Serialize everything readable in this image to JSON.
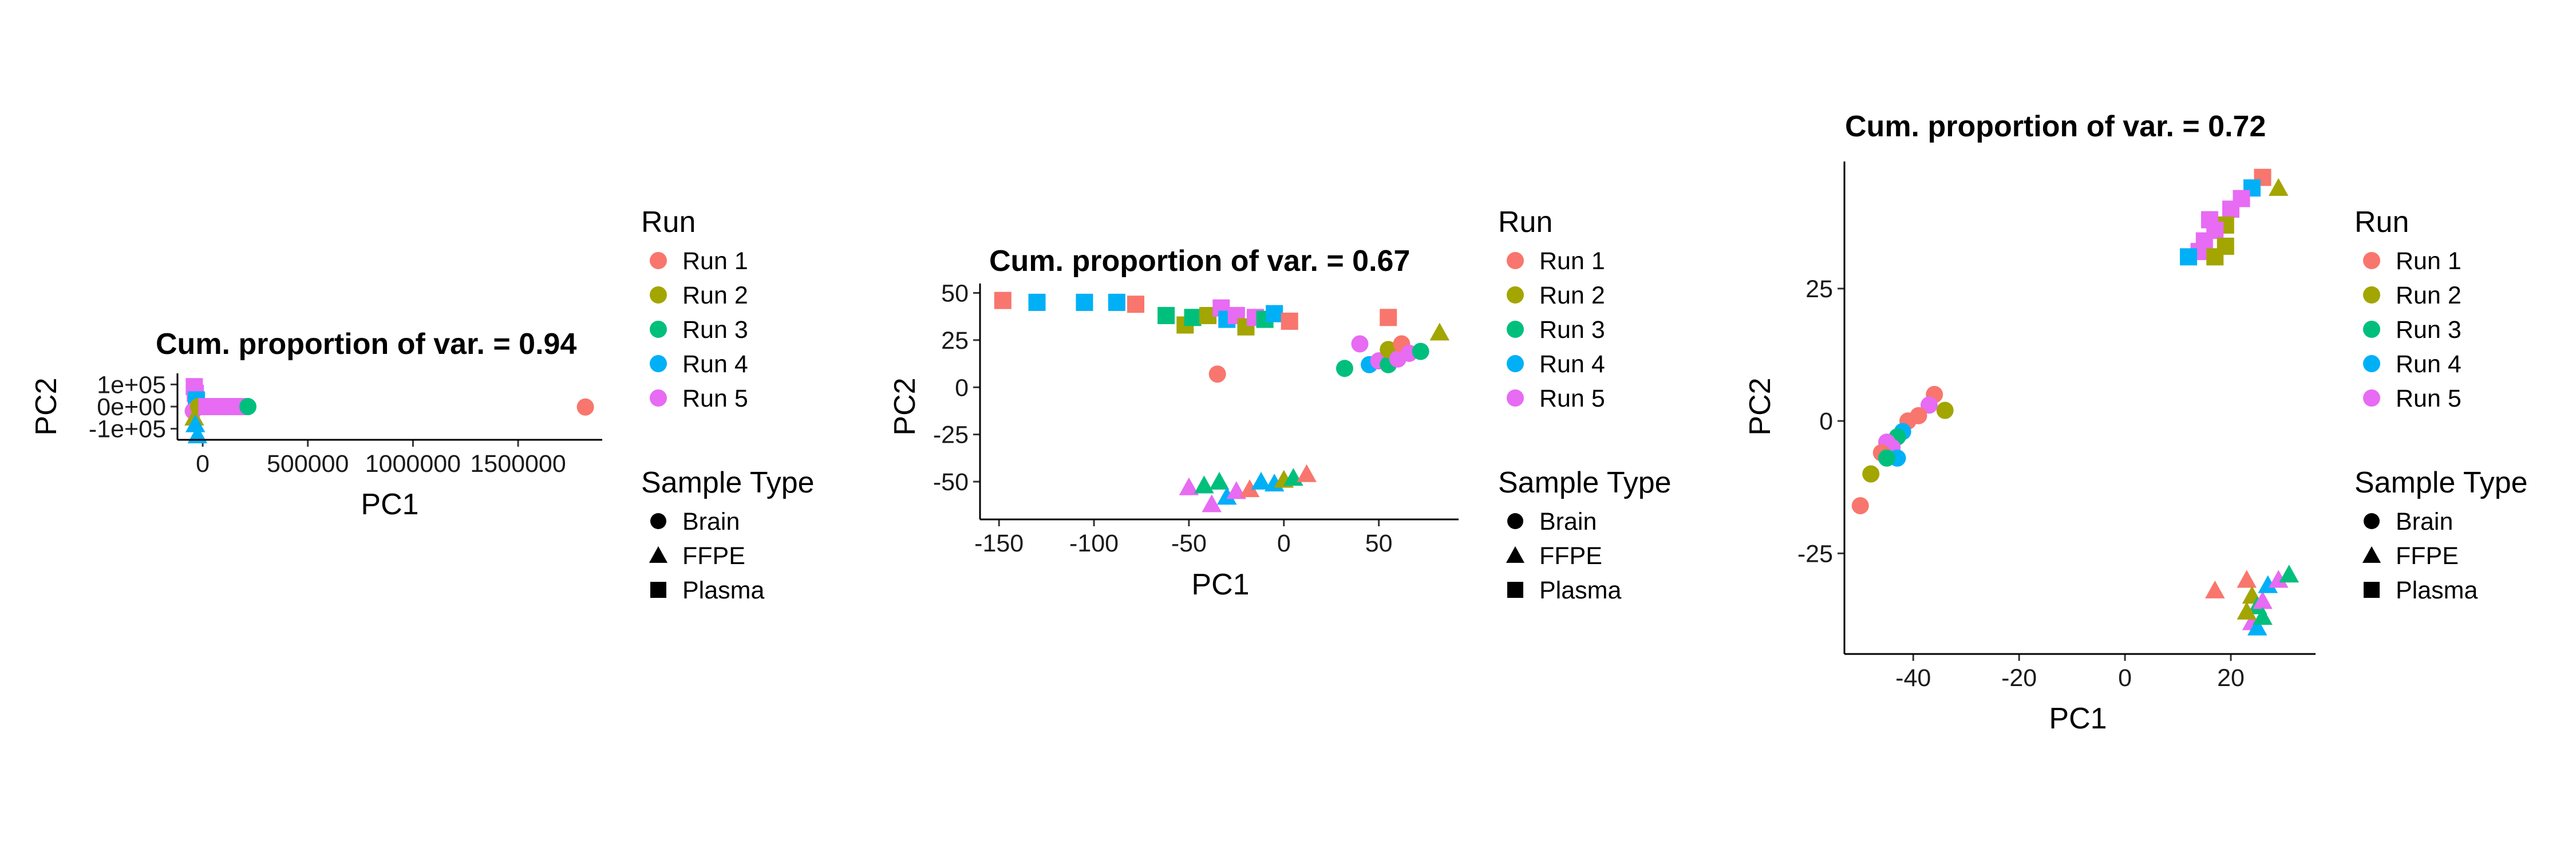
{
  "legend": {
    "run_title": "Run",
    "runs": [
      "Run 1",
      "Run 2",
      "Run 3",
      "Run 4",
      "Run 5"
    ],
    "sample_title": "Sample Type",
    "samples": [
      "Brain",
      "FFPE",
      "Plasma"
    ]
  },
  "colors": {
    "Run 1": "#F8766D",
    "Run 2": "#A3A500",
    "Run 3": "#00BF7D",
    "Run 4": "#00B0F6",
    "Run 5": "#E76BF3"
  },
  "chart_data": [
    {
      "type": "scatter",
      "title": "Cum. proportion of var. = 0.94",
      "xlabel": "PC1",
      "ylabel": "PC2",
      "xlim": [
        -120000,
        1900000
      ],
      "ylim": [
        -150000,
        150000
      ],
      "xticks": [
        0,
        500000,
        1000000,
        1500000
      ],
      "xtick_labels": [
        "0",
        "500000",
        "1000000",
        "1500000"
      ],
      "yticks": [
        -100000,
        0,
        100000
      ],
      "ytick_labels": [
        "-1e+05",
        "0e+00",
        "1e+05"
      ],
      "points": [
        {
          "x": -40000,
          "y": 90000,
          "run": "Run 5",
          "sample": "Plasma"
        },
        {
          "x": -35000,
          "y": 60000,
          "run": "Run 5",
          "sample": "Plasma"
        },
        {
          "x": -30000,
          "y": 30000,
          "run": "Run 4",
          "sample": "Plasma"
        },
        {
          "x": -45000,
          "y": -20000,
          "run": "Run 5",
          "sample": "Brain"
        },
        {
          "x": -40000,
          "y": -50000,
          "run": "Run 2",
          "sample": "FFPE"
        },
        {
          "x": -35000,
          "y": -80000,
          "run": "Run 4",
          "sample": "FFPE"
        },
        {
          "x": -25000,
          "y": -130000,
          "run": "Run 4",
          "sample": "FFPE"
        },
        {
          "x": -20000,
          "y": 0,
          "run": "Run 2",
          "sample": "Brain"
        },
        {
          "x": 20000,
          "y": 0,
          "run": "Run 5",
          "sample": "Plasma"
        },
        {
          "x": 60000,
          "y": 0,
          "run": "Run 5",
          "sample": "Plasma"
        },
        {
          "x": 100000,
          "y": 0,
          "run": "Run 5",
          "sample": "Plasma"
        },
        {
          "x": 140000,
          "y": 0,
          "run": "Run 5",
          "sample": "Plasma"
        },
        {
          "x": 180000,
          "y": 0,
          "run": "Run 5",
          "sample": "Plasma"
        },
        {
          "x": 215000,
          "y": 0,
          "run": "Run 3",
          "sample": "Brain"
        },
        {
          "x": 1820000,
          "y": -2000,
          "run": "Run 1",
          "sample": "Brain"
        }
      ]
    },
    {
      "type": "scatter",
      "title": "Cum. proportion of var. = 0.67",
      "xlabel": "PC1",
      "ylabel": "PC2",
      "xlim": [
        -160,
        92
      ],
      "ylim": [
        -70,
        55
      ],
      "xticks": [
        -150,
        -100,
        -50,
        0,
        50
      ],
      "xtick_labels": [
        "-150",
        "-100",
        "-50",
        "0",
        "50"
      ],
      "yticks": [
        -50,
        -25,
        0,
        25,
        50
      ],
      "ytick_labels": [
        "-50",
        "-25",
        "0",
        "25",
        "50"
      ],
      "points": [
        {
          "x": -148,
          "y": 46,
          "run": "Run 1",
          "sample": "Plasma"
        },
        {
          "x": -130,
          "y": 45,
          "run": "Run 4",
          "sample": "Plasma"
        },
        {
          "x": -105,
          "y": 45,
          "run": "Run 4",
          "sample": "Plasma"
        },
        {
          "x": -88,
          "y": 45,
          "run": "Run 4",
          "sample": "Plasma"
        },
        {
          "x": -78,
          "y": 44,
          "run": "Run 1",
          "sample": "Plasma"
        },
        {
          "x": -62,
          "y": 38,
          "run": "Run 3",
          "sample": "Plasma"
        },
        {
          "x": -52,
          "y": 33,
          "run": "Run 2",
          "sample": "Plasma"
        },
        {
          "x": -48,
          "y": 37,
          "run": "Run 3",
          "sample": "Plasma"
        },
        {
          "x": -40,
          "y": 38,
          "run": "Run 2",
          "sample": "Plasma"
        },
        {
          "x": -33,
          "y": 42,
          "run": "Run 5",
          "sample": "Plasma"
        },
        {
          "x": -30,
          "y": 36,
          "run": "Run 4",
          "sample": "Plasma"
        },
        {
          "x": -25,
          "y": 38,
          "run": "Run 5",
          "sample": "Plasma"
        },
        {
          "x": -20,
          "y": 32,
          "run": "Run 2",
          "sample": "Plasma"
        },
        {
          "x": -15,
          "y": 37,
          "run": "Run 5",
          "sample": "Plasma"
        },
        {
          "x": -10,
          "y": 36,
          "run": "Run 3",
          "sample": "Plasma"
        },
        {
          "x": -5,
          "y": 39,
          "run": "Run 4",
          "sample": "Plasma"
        },
        {
          "x": 3,
          "y": 35,
          "run": "Run 1",
          "sample": "Plasma"
        },
        {
          "x": 55,
          "y": 37,
          "run": "Run 1",
          "sample": "Plasma"
        },
        {
          "x": -35,
          "y": 7,
          "run": "Run 1",
          "sample": "Brain"
        },
        {
          "x": 32,
          "y": 10,
          "run": "Run 3",
          "sample": "Brain"
        },
        {
          "x": 40,
          "y": 23,
          "run": "Run 5",
          "sample": "Brain"
        },
        {
          "x": 45,
          "y": 12,
          "run": "Run 4",
          "sample": "Brain"
        },
        {
          "x": 50,
          "y": 14,
          "run": "Run 5",
          "sample": "Brain"
        },
        {
          "x": 55,
          "y": 12,
          "run": "Run 3",
          "sample": "Brain"
        },
        {
          "x": 55,
          "y": 20,
          "run": "Run 2",
          "sample": "Brain"
        },
        {
          "x": 60,
          "y": 15,
          "run": "Run 5",
          "sample": "Brain"
        },
        {
          "x": 62,
          "y": 23,
          "run": "Run 1",
          "sample": "Brain"
        },
        {
          "x": 66,
          "y": 18,
          "run": "Run 5",
          "sample": "Brain"
        },
        {
          "x": 72,
          "y": 19,
          "run": "Run 3",
          "sample": "Brain"
        },
        {
          "x": 82,
          "y": 29,
          "run": "Run 2",
          "sample": "FFPE"
        },
        {
          "x": -50,
          "y": -53,
          "run": "Run 5",
          "sample": "FFPE"
        },
        {
          "x": -42,
          "y": -52,
          "run": "Run 3",
          "sample": "FFPE"
        },
        {
          "x": -38,
          "y": -62,
          "run": "Run 5",
          "sample": "FFPE"
        },
        {
          "x": -34,
          "y": -50,
          "run": "Run 3",
          "sample": "FFPE"
        },
        {
          "x": -30,
          "y": -58,
          "run": "Run 4",
          "sample": "FFPE"
        },
        {
          "x": -25,
          "y": -55,
          "run": "Run 5",
          "sample": "FFPE"
        },
        {
          "x": -18,
          "y": -54,
          "run": "Run 1",
          "sample": "FFPE"
        },
        {
          "x": -12,
          "y": -50,
          "run": "Run 4",
          "sample": "FFPE"
        },
        {
          "x": -5,
          "y": -51,
          "run": "Run 4",
          "sample": "FFPE"
        },
        {
          "x": 0,
          "y": -49,
          "run": "Run 2",
          "sample": "FFPE"
        },
        {
          "x": 5,
          "y": -48,
          "run": "Run 3",
          "sample": "FFPE"
        },
        {
          "x": 12,
          "y": -46,
          "run": "Run 1",
          "sample": "FFPE"
        }
      ]
    },
    {
      "type": "scatter",
      "title": "Cum. proportion of var. = 0.72",
      "xlabel": "PC1",
      "ylabel": "PC2",
      "xlim": [
        -53,
        36
      ],
      "ylim": [
        -44,
        49
      ],
      "xticks": [
        -40,
        -20,
        0,
        20
      ],
      "xtick_labels": [
        "-40",
        "-20",
        "0",
        "20"
      ],
      "yticks": [
        -25,
        0,
        25
      ],
      "ytick_labels": [
        "-25",
        "0",
        "25"
      ],
      "points": [
        {
          "x": 26,
          "y": 46,
          "run": "Run 1",
          "sample": "Plasma"
        },
        {
          "x": 29,
          "y": 44,
          "run": "Run 2",
          "sample": "FFPE"
        },
        {
          "x": 24,
          "y": 44,
          "run": "Run 4",
          "sample": "Plasma"
        },
        {
          "x": 22,
          "y": 42,
          "run": "Run 5",
          "sample": "Plasma"
        },
        {
          "x": 20,
          "y": 40,
          "run": "Run 5",
          "sample": "Plasma"
        },
        {
          "x": 19,
          "y": 37,
          "run": "Run 2",
          "sample": "Plasma"
        },
        {
          "x": 17,
          "y": 36,
          "run": "Run 5",
          "sample": "Plasma"
        },
        {
          "x": 15,
          "y": 34,
          "run": "Run 5",
          "sample": "Plasma"
        },
        {
          "x": 14,
          "y": 32,
          "run": "Run 5",
          "sample": "Plasma"
        },
        {
          "x": 12,
          "y": 31,
          "run": "Run 4",
          "sample": "Plasma"
        },
        {
          "x": 17,
          "y": 31,
          "run": "Run 2",
          "sample": "Plasma"
        },
        {
          "x": 19,
          "y": 33,
          "run": "Run 2",
          "sample": "Plasma"
        },
        {
          "x": 16,
          "y": 38,
          "run": "Run 5",
          "sample": "Plasma"
        },
        {
          "x": -36,
          "y": 5,
          "run": "Run 1",
          "sample": "Brain"
        },
        {
          "x": -34,
          "y": 2,
          "run": "Run 2",
          "sample": "Brain"
        },
        {
          "x": -37,
          "y": 3,
          "run": "Run 5",
          "sample": "Brain"
        },
        {
          "x": -39,
          "y": 1,
          "run": "Run 1",
          "sample": "Brain"
        },
        {
          "x": -41,
          "y": 0,
          "run": "Run 1",
          "sample": "Brain"
        },
        {
          "x": -42,
          "y": -2,
          "run": "Run 4",
          "sample": "Brain"
        },
        {
          "x": -43,
          "y": -3,
          "run": "Run 3",
          "sample": "Brain"
        },
        {
          "x": -45,
          "y": -4,
          "run": "Run 5",
          "sample": "Brain"
        },
        {
          "x": -44,
          "y": -5,
          "run": "Run 5",
          "sample": "Brain"
        },
        {
          "x": -46,
          "y": -6,
          "run": "Run 1",
          "sample": "Brain"
        },
        {
          "x": -43,
          "y": -7,
          "run": "Run 4",
          "sample": "Brain"
        },
        {
          "x": -45,
          "y": -7,
          "run": "Run 3",
          "sample": "Brain"
        },
        {
          "x": -48,
          "y": -10,
          "run": "Run 2",
          "sample": "Brain"
        },
        {
          "x": -50,
          "y": -16,
          "run": "Run 1",
          "sample": "Brain"
        },
        {
          "x": 17,
          "y": -32,
          "run": "Run 1",
          "sample": "FFPE"
        },
        {
          "x": 23,
          "y": -30,
          "run": "Run 1",
          "sample": "FFPE"
        },
        {
          "x": 24,
          "y": -33,
          "run": "Run 2",
          "sample": "FFPE"
        },
        {
          "x": 25,
          "y": -35,
          "run": "Run 3",
          "sample": "FFPE"
        },
        {
          "x": 26,
          "y": -34,
          "run": "Run 5",
          "sample": "FFPE"
        },
        {
          "x": 27,
          "y": -31,
          "run": "Run 4",
          "sample": "FFPE"
        },
        {
          "x": 24,
          "y": -38,
          "run": "Run 5",
          "sample": "FFPE"
        },
        {
          "x": 25,
          "y": -39,
          "run": "Run 4",
          "sample": "FFPE"
        },
        {
          "x": 26,
          "y": -37,
          "run": "Run 3",
          "sample": "FFPE"
        },
        {
          "x": 23,
          "y": -36,
          "run": "Run 2",
          "sample": "FFPE"
        },
        {
          "x": 29,
          "y": -30,
          "run": "Run 5",
          "sample": "FFPE"
        },
        {
          "x": 31,
          "y": -29,
          "run": "Run 3",
          "sample": "FFPE"
        }
      ]
    }
  ]
}
